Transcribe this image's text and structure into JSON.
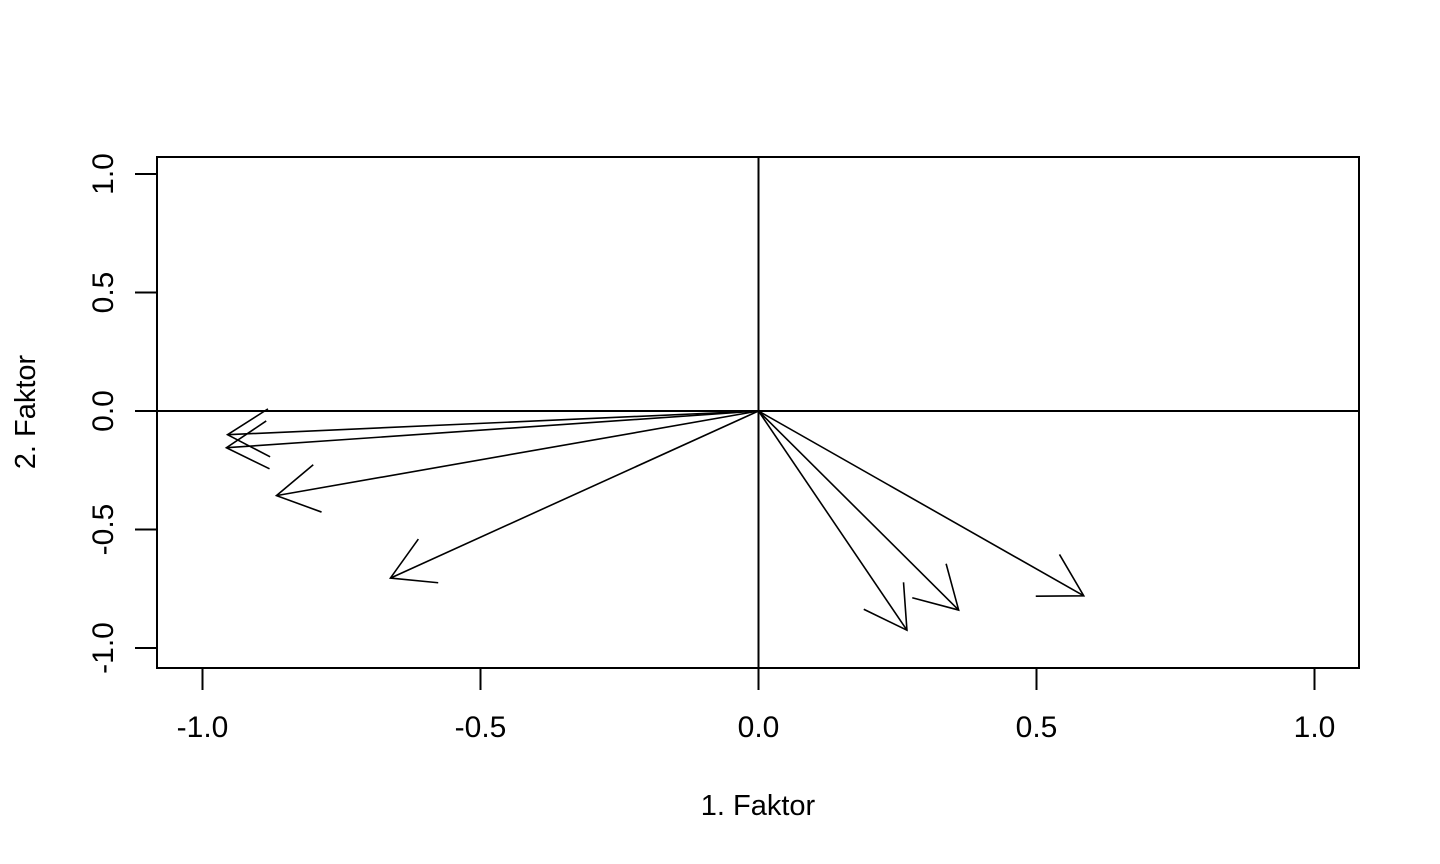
{
  "chart_data": {
    "type": "vector-loading-plot",
    "title": "",
    "xlabel": "1. Faktor",
    "ylabel": "2. Faktor",
    "xlim": [
      -1.08,
      1.08
    ],
    "ylim": [
      -1.08,
      1.08
    ],
    "x_ticks": [
      -1.0,
      -0.5,
      0.0,
      0.5,
      1.0
    ],
    "x_tick_labels": [
      "-1.0",
      "-0.5",
      "0.0",
      "0.5",
      "1.0"
    ],
    "y_ticks": [
      -1.0,
      -0.5,
      0.0,
      0.5,
      1.0
    ],
    "y_tick_labels": [
      "-1.0",
      "-0.5",
      "0.0",
      "0.5",
      "1.0"
    ],
    "reference_lines": {
      "x": 0,
      "y": 0
    },
    "grid": false,
    "legend": "none",
    "origin": [
      0,
      0
    ],
    "vectors": [
      {
        "x": -0.955,
        "y": -0.1
      },
      {
        "x": -0.957,
        "y": -0.155
      },
      {
        "x": -0.867,
        "y": -0.357
      },
      {
        "x": -0.662,
        "y": -0.705
      },
      {
        "x": 0.267,
        "y": -0.925
      },
      {
        "x": 0.36,
        "y": -0.84
      },
      {
        "x": 0.585,
        "y": -0.78
      }
    ]
  }
}
